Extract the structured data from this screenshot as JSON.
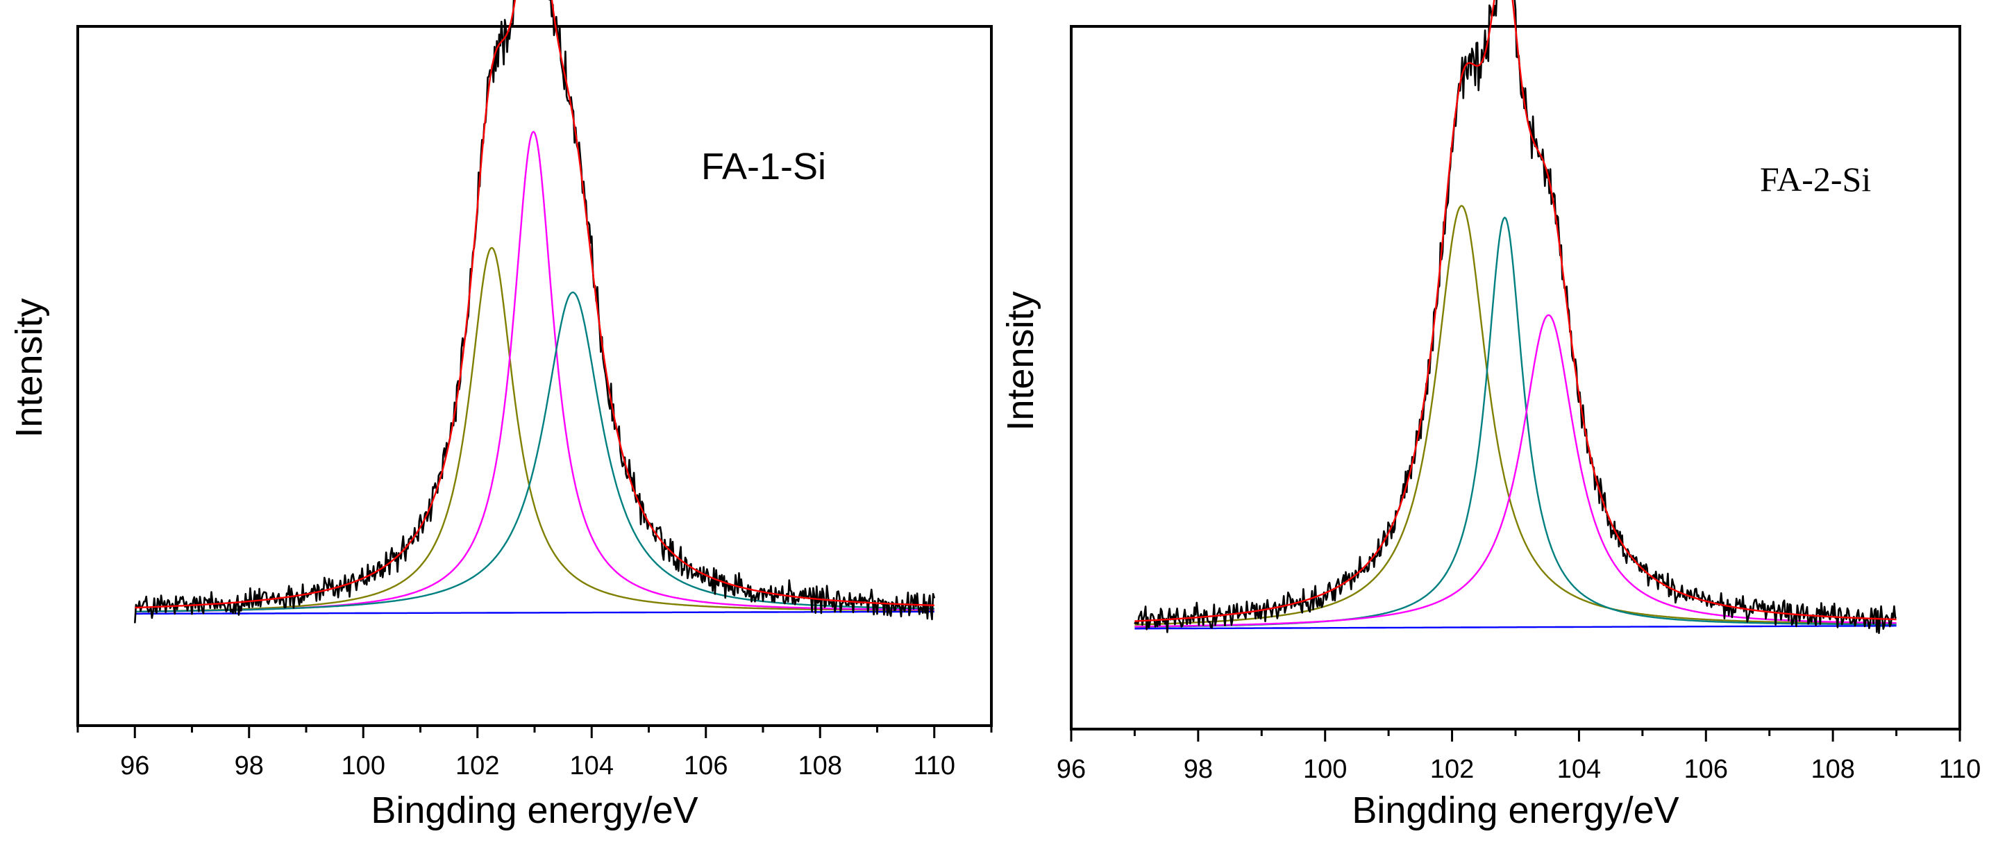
{
  "chart_data": [
    {
      "type": "line",
      "sample_label": "FA-1-Si",
      "xlabel": "Bingding energy/eV",
      "ylabel": "Intensity",
      "xlim": [
        95,
        111
      ],
      "ylim": [
        0,
        1
      ],
      "x_ticks": [
        96,
        98,
        100,
        102,
        104,
        106,
        108,
        110
      ],
      "y_ticks_shown": false,
      "x_range": [
        96,
        110
      ],
      "baseline": {
        "start": 0.16,
        "end": 0.163
      },
      "noise_amplitude": 0.012,
      "series": [
        {
          "name": "raw-spectrum",
          "color": "#000000",
          "role": "noisy"
        },
        {
          "name": "envelope-fit",
          "color": "#ff0000",
          "role": "envelope"
        },
        {
          "name": "component-1",
          "color": "#808000",
          "center": 102.25,
          "height": 0.522,
          "width": 0.48
        },
        {
          "name": "component-2",
          "color": "#ff00ff",
          "center": 102.98,
          "height": 0.688,
          "width": 0.44
        },
        {
          "name": "component-3",
          "color": "#008080",
          "center": 103.67,
          "height": 0.458,
          "width": 0.62
        },
        {
          "name": "background",
          "color": "#0000ff",
          "role": "baseline"
        }
      ]
    },
    {
      "type": "line",
      "sample_label": "FA-2-Si",
      "xlabel": "Bingding energy/eV",
      "ylabel": "Intensity",
      "xlim": [
        96,
        110
      ],
      "ylim": [
        0,
        1
      ],
      "x_ticks": [
        96,
        98,
        100,
        102,
        104,
        106,
        108,
        110
      ],
      "y_ticks_shown": false,
      "x_range": [
        97,
        109
      ],
      "baseline": {
        "start": 0.143,
        "end": 0.147
      },
      "noise_amplitude": 0.011,
      "series": [
        {
          "name": "raw-spectrum",
          "color": "#000000",
          "role": "noisy"
        },
        {
          "name": "envelope-fit",
          "color": "#ff0000",
          "role": "envelope"
        },
        {
          "name": "component-1",
          "color": "#808000",
          "center": 102.15,
          "height": 0.6,
          "width": 0.5
        },
        {
          "name": "component-2",
          "color": "#008080",
          "center": 102.83,
          "height": 0.583,
          "width": 0.36
        },
        {
          "name": "component-3",
          "color": "#ff00ff",
          "center": 103.52,
          "height": 0.444,
          "width": 0.52
        },
        {
          "name": "background",
          "color": "#0000ff",
          "role": "baseline"
        }
      ]
    }
  ]
}
